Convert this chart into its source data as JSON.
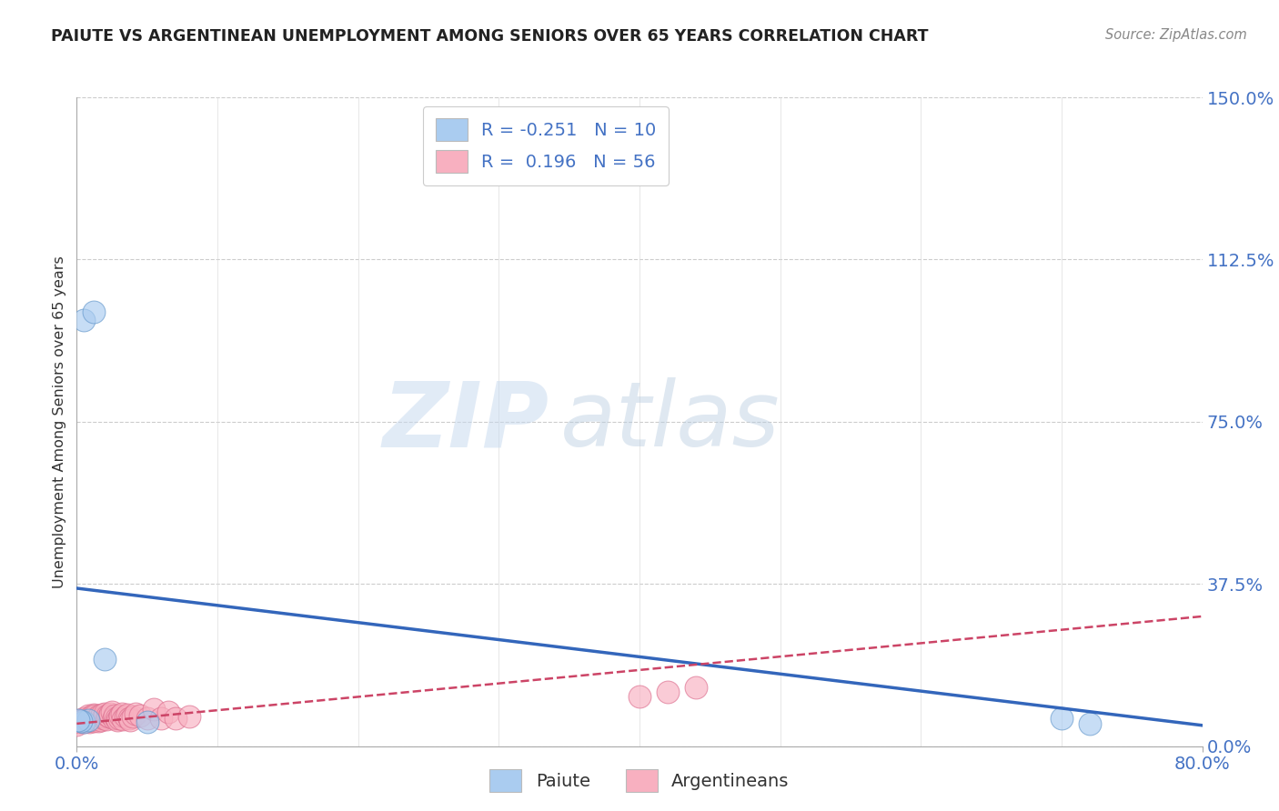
{
  "title": "PAIUTE VS ARGENTINEAN UNEMPLOYMENT AMONG SENIORS OVER 65 YEARS CORRELATION CHART",
  "source": "Source: ZipAtlas.com",
  "ylabel_label": "Unemployment Among Seniors over 65 years",
  "ylim": [
    0.0,
    1.5
  ],
  "xlim": [
    0.0,
    0.8
  ],
  "legend_paiute_R": "-0.251",
  "legend_paiute_N": "10",
  "legend_arg_R": "0.196",
  "legend_arg_N": "56",
  "paiute_color": "#aaccf0",
  "paiute_edge_color": "#6699cc",
  "paiute_line_color": "#3366bb",
  "arg_color": "#f8b0c0",
  "arg_edge_color": "#dd7090",
  "arg_line_color": "#cc4466",
  "watermark_zip": "ZIP",
  "watermark_atlas": "atlas",
  "background_color": "#ffffff",
  "paiute_scatter_x": [
    0.005,
    0.012,
    0.7,
    0.72,
    0.02,
    0.05,
    0.005,
    0.008,
    0.003,
    0.001
  ],
  "paiute_scatter_y": [
    0.985,
    1.005,
    0.065,
    0.052,
    0.2,
    0.055,
    0.055,
    0.06,
    0.058,
    0.06
  ],
  "arg_scatter_x": [
    0.0,
    0.002,
    0.003,
    0.004,
    0.005,
    0.005,
    0.006,
    0.007,
    0.008,
    0.008,
    0.009,
    0.01,
    0.01,
    0.011,
    0.012,
    0.012,
    0.013,
    0.013,
    0.014,
    0.015,
    0.015,
    0.016,
    0.017,
    0.018,
    0.019,
    0.02,
    0.02,
    0.021,
    0.022,
    0.023,
    0.024,
    0.025,
    0.026,
    0.027,
    0.028,
    0.029,
    0.03,
    0.031,
    0.032,
    0.033,
    0.035,
    0.036,
    0.037,
    0.038,
    0.04,
    0.042,
    0.045,
    0.05,
    0.055,
    0.06,
    0.065,
    0.07,
    0.08,
    0.4,
    0.42,
    0.44
  ],
  "arg_scatter_y": [
    0.05,
    0.055,
    0.06,
    0.058,
    0.055,
    0.065,
    0.06,
    0.065,
    0.058,
    0.07,
    0.055,
    0.06,
    0.068,
    0.065,
    0.058,
    0.072,
    0.065,
    0.07,
    0.062,
    0.058,
    0.066,
    0.07,
    0.06,
    0.072,
    0.065,
    0.068,
    0.075,
    0.062,
    0.07,
    0.068,
    0.075,
    0.08,
    0.065,
    0.07,
    0.065,
    0.06,
    0.065,
    0.07,
    0.075,
    0.062,
    0.068,
    0.072,
    0.065,
    0.06,
    0.068,
    0.075,
    0.07,
    0.065,
    0.085,
    0.065,
    0.08,
    0.065,
    0.068,
    0.115,
    0.125,
    0.135
  ],
  "paiute_trend_x0": 0.0,
  "paiute_trend_x1": 0.8,
  "paiute_trend_y0": 0.365,
  "paiute_trend_y1": 0.048,
  "arg_trend_x0": 0.0,
  "arg_trend_x1": 0.8,
  "arg_trend_y0": 0.052,
  "arg_trend_y1": 0.3,
  "ytick_vals": [
    0.0,
    0.375,
    0.75,
    1.125,
    1.5
  ],
  "ytick_labels": [
    "0.0%",
    "37.5%",
    "75.0%",
    "112.5%",
    "150.0%"
  ],
  "xtick_vals": [
    0.0,
    0.8
  ],
  "xtick_labels": [
    "0.0%",
    "80.0%"
  ]
}
